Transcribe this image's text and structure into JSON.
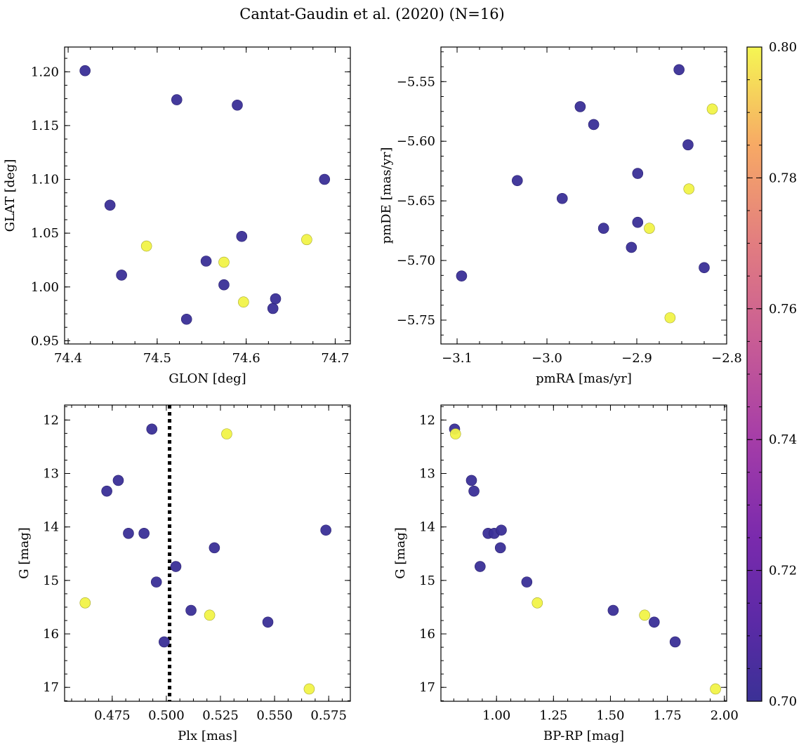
{
  "figure": {
    "title": "Cantat-Gaudin et al. (2020) (N=16)"
  },
  "colors": {
    "member_low": "#3a2f97",
    "member_high": "#f1f348",
    "point_edge_low": "#2a2170",
    "point_edge_high": "#a6a830",
    "reference_line": "#000000"
  },
  "colorbar": {
    "cmap": "plasma",
    "vmin": 0.7,
    "vmax": 0.8,
    "ticks": [
      0.7,
      0.72,
      0.74,
      0.76,
      0.78,
      0.8
    ],
    "tick_labels": [
      "0.70",
      "0.72",
      "0.74",
      "0.76",
      "0.78",
      "0.80"
    ]
  },
  "chart_data": [
    {
      "id": "pos",
      "type": "scatter",
      "xlabel": "GLON [deg]",
      "ylabel": "GLAT [deg]",
      "xlim": [
        74.396,
        74.717
      ],
      "ylim": [
        0.947,
        1.223
      ],
      "xticks": [
        74.4,
        74.5,
        74.6,
        74.7
      ],
      "xtick_labels": [
        "74.4",
        "74.5",
        "74.6",
        "74.7"
      ],
      "yticks": [
        0.95,
        1.0,
        1.05,
        1.1,
        1.15,
        1.2
      ],
      "ytick_labels": [
        "0.95",
        "1.00",
        "1.05",
        "1.10",
        "1.15",
        "1.20"
      ],
      "invert_y": false,
      "x": [
        74.419,
        74.447,
        74.46,
        74.488,
        74.522,
        74.533,
        74.555,
        74.575,
        74.575,
        74.59,
        74.595,
        74.597,
        74.63,
        74.633,
        74.668,
        74.688
      ],
      "y": [
        1.201,
        1.076,
        1.011,
        1.038,
        1.174,
        0.97,
        1.024,
        1.023,
        1.002,
        1.169,
        1.047,
        0.986,
        0.98,
        0.989,
        1.044,
        1.1
      ],
      "c": [
        0.7,
        0.7,
        0.7,
        0.8,
        0.7,
        0.7,
        0.7,
        0.8,
        0.7,
        0.7,
        0.7,
        0.8,
        0.7,
        0.7,
        0.8,
        0.7
      ]
    },
    {
      "id": "pm",
      "type": "scatter",
      "xlabel": "pmRA [mas/yr]",
      "ylabel": "pmDE [mas/yr]",
      "xlim": [
        -3.118,
        -2.8
      ],
      "ylim": [
        -5.77,
        -5.521
      ],
      "xticks": [
        -3.1,
        -3.0,
        -2.9,
        -2.8
      ],
      "xtick_labels": [
        "−3.1",
        "−3.0",
        "−2.9",
        "−2.8"
      ],
      "yticks": [
        -5.75,
        -5.7,
        -5.65,
        -5.6,
        -5.55
      ],
      "ytick_labels": [
        "−5.75",
        "−5.70",
        "−5.65",
        "−5.60",
        "−5.55"
      ],
      "invert_y": false,
      "x": [
        -3.095,
        -3.033,
        -2.983,
        -2.963,
        -2.948,
        -2.937,
        -2.906,
        -2.899,
        -2.899,
        -2.886,
        -2.863,
        -2.853,
        -2.843,
        -2.842,
        -2.825,
        -2.816
      ],
      "y": [
        -5.713,
        -5.633,
        -5.648,
        -5.571,
        -5.586,
        -5.673,
        -5.689,
        -5.668,
        -5.627,
        -5.673,
        -5.748,
        -5.54,
        -5.603,
        -5.64,
        -5.706,
        -5.573
      ],
      "c": [
        0.7,
        0.7,
        0.7,
        0.7,
        0.7,
        0.7,
        0.7,
        0.7,
        0.7,
        0.8,
        0.8,
        0.7,
        0.7,
        0.8,
        0.7,
        0.8
      ]
    },
    {
      "id": "plx",
      "type": "scatter",
      "xlabel": "Plx [mas]",
      "ylabel": "G [mag]",
      "xlim": [
        0.453,
        0.585
      ],
      "ylim": [
        17.26,
        11.72
      ],
      "xticks": [
        0.475,
        0.5,
        0.525,
        0.55,
        0.575
      ],
      "xtick_labels": [
        "0.475",
        "0.500",
        "0.525",
        "0.550",
        "0.575"
      ],
      "yticks": [
        12,
        13,
        14,
        15,
        16,
        17
      ],
      "ytick_labels": [
        "12",
        "13",
        "14",
        "15",
        "16",
        "17"
      ],
      "invert_y": true,
      "reference_line": {
        "x": 0.5015,
        "style": "dotted"
      },
      "x": [
        0.4625,
        0.4725,
        0.4778,
        0.4825,
        0.4897,
        0.4933,
        0.4954,
        0.499,
        0.5044,
        0.5114,
        0.52,
        0.5222,
        0.5279,
        0.5469,
        0.566,
        0.5737
      ],
      "y": [
        15.42,
        13.33,
        13.13,
        14.12,
        14.12,
        12.17,
        15.03,
        16.15,
        14.74,
        15.56,
        15.65,
        14.39,
        12.26,
        15.78,
        17.03,
        14.06
      ],
      "c": [
        0.8,
        0.7,
        0.7,
        0.7,
        0.7,
        0.7,
        0.7,
        0.7,
        0.7,
        0.7,
        0.8,
        0.7,
        0.8,
        0.7,
        0.8,
        0.7
      ]
    },
    {
      "id": "cmd",
      "type": "scatter",
      "xlabel": "BP-RP [mag]",
      "ylabel": "G [mag]",
      "xlim": [
        0.756,
        2.01
      ],
      "ylim": [
        17.26,
        11.72
      ],
      "xticks": [
        1.0,
        1.25,
        1.5,
        1.75,
        2.0
      ],
      "xtick_labels": [
        "1.00",
        "1.25",
        "1.50",
        "1.75",
        "2.00"
      ],
      "yticks": [
        12,
        13,
        14,
        15,
        16,
        17
      ],
      "ytick_labels": [
        "12",
        "13",
        "14",
        "15",
        "16",
        "17"
      ],
      "invert_y": true,
      "x": [
        0.816,
        0.82,
        0.89,
        0.901,
        0.928,
        0.963,
        0.99,
        1.017,
        1.021,
        1.133,
        1.179,
        1.512,
        1.65,
        1.692,
        1.784,
        1.961
      ],
      "y": [
        12.17,
        12.26,
        13.13,
        13.33,
        14.74,
        14.12,
        14.12,
        14.39,
        14.06,
        15.03,
        15.42,
        15.56,
        15.65,
        15.78,
        16.15,
        17.03
      ],
      "c": [
        0.7,
        0.8,
        0.7,
        0.7,
        0.7,
        0.7,
        0.7,
        0.7,
        0.7,
        0.7,
        0.8,
        0.7,
        0.8,
        0.7,
        0.7,
        0.8
      ]
    }
  ]
}
